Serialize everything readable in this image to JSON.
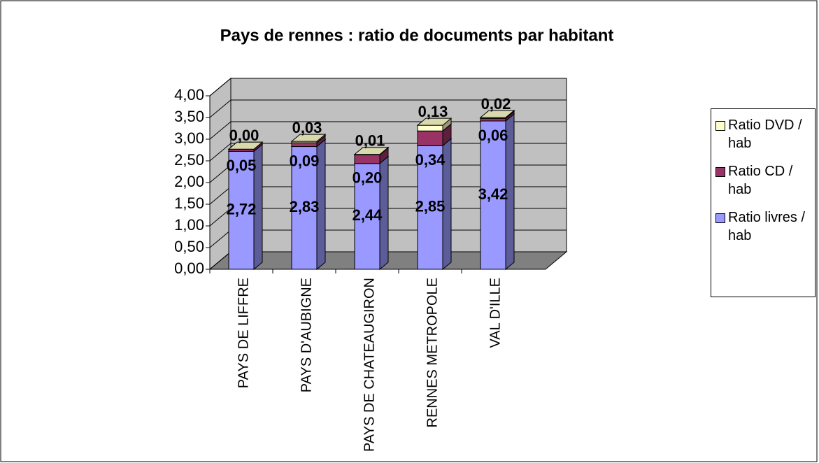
{
  "chart_data": {
    "type": "bar3d-stacked",
    "title": "Pays de rennes : ratio de documents par habitant",
    "categories": [
      "PAYS DE LIFFRE",
      "PAYS D'AUBIGNE",
      "PAYS DE CHATEAUGIRON",
      "RENNES METROPOLE",
      "VAL D'ILLE"
    ],
    "series": [
      {
        "name": "Ratio livres / hab",
        "color": "#9999ff",
        "values": [
          2.72,
          2.83,
          2.44,
          2.85,
          3.42
        ],
        "value_labels": [
          "2,72",
          "2,83",
          "2,44",
          "2,85",
          "3,42"
        ]
      },
      {
        "name": "Ratio CD / hab",
        "color": "#993366",
        "values": [
          0.05,
          0.09,
          0.2,
          0.34,
          0.06
        ],
        "value_labels": [
          "0,05",
          "0,09",
          "0,20",
          "0,34",
          "0,06"
        ]
      },
      {
        "name": "Ratio DVD / hab",
        "color": "#ffffcc",
        "values": [
          0.0,
          0.03,
          0.01,
          0.13,
          0.02
        ],
        "value_labels": [
          "0,00",
          "0,03",
          "0,01",
          "0,13",
          "0,02"
        ]
      }
    ],
    "ylim": [
      0,
      4
    ],
    "yticks": [
      {
        "value": 0,
        "label": "0,00"
      },
      {
        "value": 0.5,
        "label": "0,50"
      },
      {
        "value": 1,
        "label": "1,00"
      },
      {
        "value": 1.5,
        "label": "1,50"
      },
      {
        "value": 2,
        "label": "2,00"
      },
      {
        "value": 2.5,
        "label": "2,50"
      },
      {
        "value": 3,
        "label": "3,00"
      },
      {
        "value": 3.5,
        "label": "3,50"
      },
      {
        "value": 4,
        "label": "4,00"
      }
    ],
    "grid": true,
    "legend": "right"
  }
}
